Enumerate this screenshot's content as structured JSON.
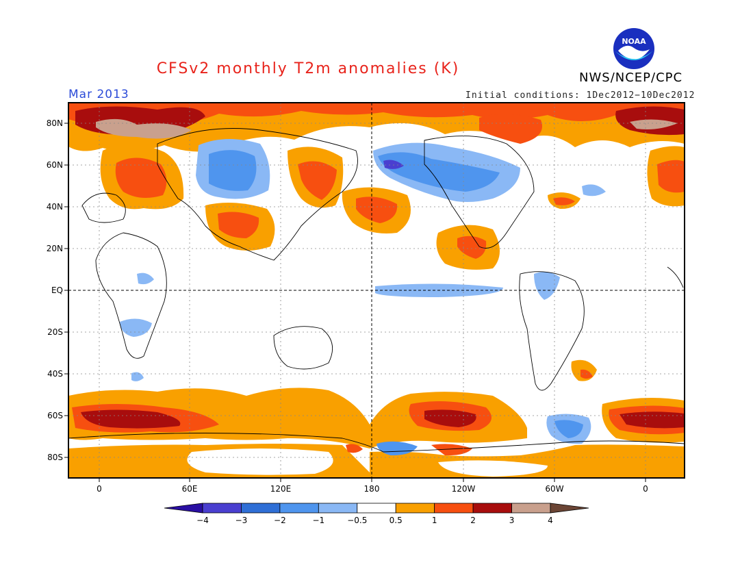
{
  "title": "CFSv2 monthly T2m anomalies (K)",
  "period": "Mar 2013",
  "agency": "NWS/NCEP/CPC",
  "logo_text": "NOAA",
  "initial_conditions": "Initial conditions: 1Dec2012−10Dec2012",
  "lat_labels": [
    "80N",
    "60N",
    "40N",
    "20N",
    "EQ",
    "20S",
    "40S",
    "60S",
    "80S"
  ],
  "lon_labels": [
    "0",
    "60E",
    "120E",
    "180",
    "120W",
    "60W",
    "0"
  ],
  "colorbar": {
    "labels": [
      "−4",
      "−3",
      "−2",
      "−1",
      "−0.5",
      "0.5",
      "1",
      "2",
      "3",
      "4"
    ],
    "colors": [
      "#2a0fa3",
      "#4a3fd0",
      "#2f6fd6",
      "#4f95ee",
      "#8ab8f5",
      "#ffffff",
      "#f9a000",
      "#f74f10",
      "#a80d0d",
      "#c9a08d",
      "#6b4535"
    ]
  },
  "colors": {
    "pos1": "#f9a000",
    "pos2": "#f74f10",
    "pos3": "#a80d0d",
    "pos4": "#c9a08d",
    "neg1": "#8ab8f5",
    "neg2": "#4f95ee",
    "neg3": "#2f6fd6",
    "neg4": "#4a3fd0"
  }
}
